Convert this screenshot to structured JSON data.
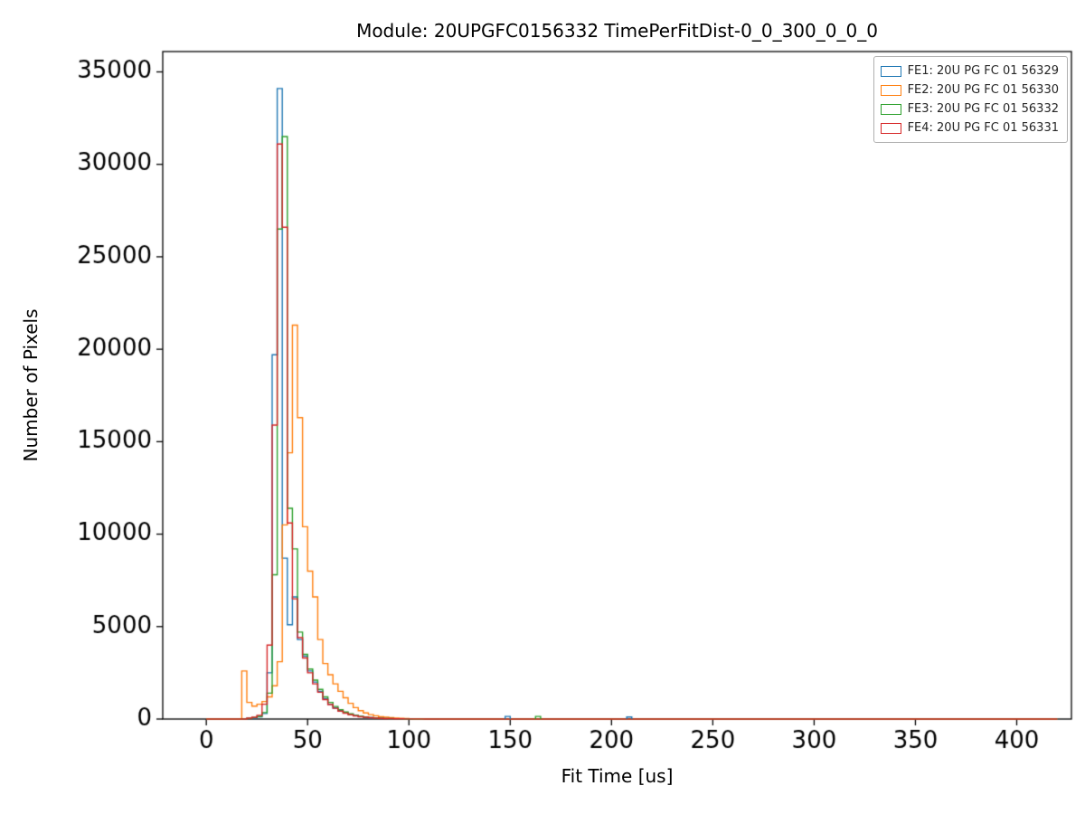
{
  "figure": {
    "background": "#ffffff"
  },
  "chart_data": {
    "type": "histogram-step",
    "title": "Module: 20UPGFC0156332 TimePerFitDist-0_0_300_0_0_0",
    "xlabel": "Fit Time [us]",
    "ylabel": "Number of Pixels",
    "xlim": [
      -21.5,
      427
    ],
    "ylim": [
      0,
      36100
    ],
    "xticks": [
      0,
      50,
      100,
      150,
      200,
      250,
      300,
      350,
      400
    ],
    "yticks": [
      0,
      5000,
      10000,
      15000,
      20000,
      25000,
      30000,
      35000
    ],
    "grid": false,
    "legend_position": "upper right",
    "axis_color": "#000000",
    "bin_start": 15,
    "bin_width": 2.5,
    "baseline_extent": [
      0,
      420
    ],
    "series": [
      {
        "name": "FE1",
        "label": "FE1: 20U PG FC 01 56329",
        "color": "#1f77b4",
        "values": [
          0,
          0,
          30,
          60,
          120,
          300,
          2500,
          19700,
          34100,
          8700,
          5100,
          6600,
          4300,
          3400,
          2600,
          2000,
          1500,
          1100,
          800,
          600,
          450,
          340,
          250,
          180,
          130,
          100,
          75,
          55,
          40,
          30,
          22,
          16,
          12,
          9,
          7,
          5,
          4,
          3,
          2,
          2,
          1,
          1
        ]
      },
      {
        "name": "FE2",
        "label": "FE2: 20U PG FC 01 56330",
        "color": "#ff7f0e",
        "values": [
          0,
          2600,
          900,
          700,
          800,
          950,
          1200,
          1800,
          3100,
          10500,
          14400,
          21300,
          16300,
          10400,
          8000,
          6600,
          4300,
          3000,
          2400,
          1900,
          1500,
          1150,
          850,
          620,
          450,
          330,
          240,
          175,
          130,
          95,
          70,
          50,
          38,
          28,
          20,
          15,
          11,
          8,
          6,
          4,
          3,
          2
        ]
      },
      {
        "name": "FE3",
        "label": "FE3: 20U PG FC 01 56332",
        "color": "#2ca02c",
        "values": [
          0,
          0,
          40,
          80,
          150,
          350,
          1400,
          7800,
          26500,
          31500,
          11400,
          9200,
          4700,
          3500,
          2700,
          2100,
          1600,
          1200,
          900,
          680,
          500,
          380,
          280,
          200,
          150,
          110,
          80,
          60,
          45,
          33,
          25,
          18,
          13,
          10,
          7,
          5,
          4,
          3,
          2,
          2,
          1,
          1
        ]
      },
      {
        "name": "FE4",
        "label": "FE4: 20U PG FC 01 56331",
        "color": "#d62728",
        "values": [
          0,
          0,
          50,
          100,
          200,
          800,
          4000,
          15900,
          31100,
          26600,
          10600,
          6500,
          4400,
          3300,
          2500,
          1900,
          1450,
          1050,
          780,
          580,
          430,
          320,
          230,
          170,
          125,
          95,
          70,
          50,
          38,
          28,
          21,
          15,
          11,
          8,
          6,
          5,
          4,
          3,
          2,
          2,
          1,
          1
        ]
      }
    ],
    "outliers": [
      {
        "series": 0,
        "x": 147.5,
        "count": 140
      },
      {
        "series": 2,
        "x": 162.5,
        "count": 140
      },
      {
        "series": 0,
        "x": 207.5,
        "count": 110
      }
    ]
  }
}
